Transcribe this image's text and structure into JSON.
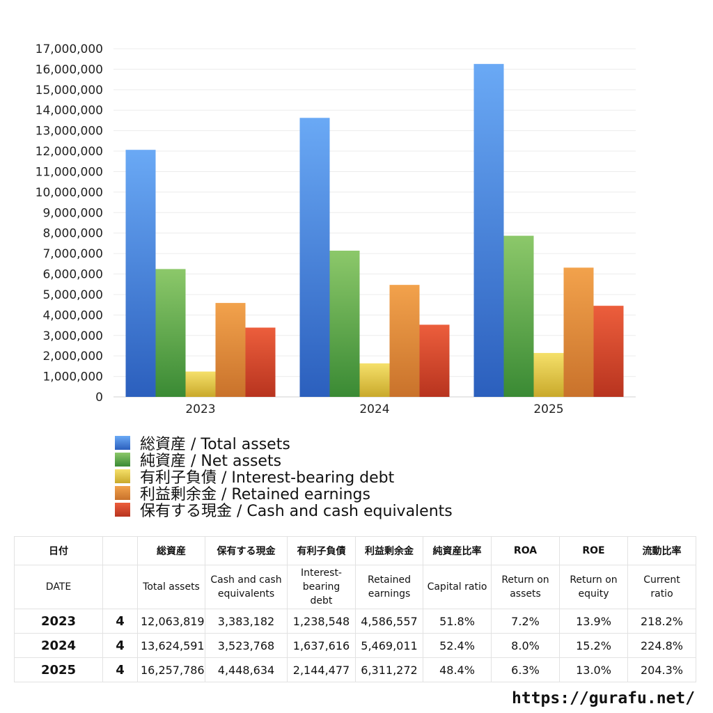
{
  "chart_data": {
    "type": "bar",
    "categories": [
      "2023",
      "2024",
      "2025"
    ],
    "series": [
      {
        "name": "総資産 / Total assets",
        "values": [
          12063819,
          13624591,
          16257786
        ],
        "color_top": "#6aa9f5",
        "color_bottom": "#2b5fbd"
      },
      {
        "name": "純資産 / Net assets",
        "values": [
          6243000,
          7140000,
          7868000
        ],
        "color_top": "#8cc86a",
        "color_bottom": "#3a8a34"
      },
      {
        "name": "有利子負債 / Interest-bearing debt",
        "values": [
          1238548,
          1637616,
          2144477
        ],
        "color_top": "#f5e06a",
        "color_bottom": "#c9a92b"
      },
      {
        "name": "利益剰余金 / Retained earnings",
        "values": [
          4586557,
          5469011,
          6311272
        ],
        "color_top": "#f2a24c",
        "color_bottom": "#c9722b"
      },
      {
        "name": "保有する現金 /  Cash and cash equivalents",
        "values": [
          3383182,
          3523768,
          4448634
        ],
        "color_top": "#ec5e3c",
        "color_bottom": "#b8341f"
      }
    ],
    "yticks": [
      "0",
      "1,000,000",
      "2,000,000",
      "3,000,000",
      "4,000,000",
      "5,000,000",
      "6,000,000",
      "7,000,000",
      "8,000,000",
      "9,000,000",
      "10,000,000",
      "11,000,000",
      "12,000,000",
      "13,000,000",
      "14,000,000",
      "15,000,000",
      "16,000,000",
      "17,000,000"
    ],
    "ylim": [
      0,
      17000000
    ],
    "grid": true,
    "legend": "bottom"
  },
  "table": {
    "header_ja": [
      "日付",
      "",
      "総資産",
      "保有する現金",
      "有利子負債",
      "利益剰余金",
      "純資産比率",
      "ROA",
      "ROE",
      "流動比率"
    ],
    "header_en": [
      "DATE",
      "",
      "Total assets",
      "Cash and cash equivalents",
      "Interest-bearing debt",
      "Retained earnings",
      "Capital ratio",
      "Return on assets",
      "Return on equity",
      "Current ratio"
    ],
    "rows": [
      [
        "2023",
        "4",
        "12,063,819",
        "3,383,182",
        "1,238,548",
        "4,586,557",
        "51.8%",
        "7.2%",
        "13.9%",
        "218.2%"
      ],
      [
        "2024",
        "4",
        "13,624,591",
        "3,523,768",
        "1,637,616",
        "5,469,011",
        "52.4%",
        "8.0%",
        "15.2%",
        "224.8%"
      ],
      [
        "2025",
        "4",
        "16,257,786",
        "4,448,634",
        "2,144,477",
        "6,311,272",
        "48.4%",
        "6.3%",
        "13.0%",
        "204.3%"
      ]
    ]
  },
  "footer": {
    "url": "https://gurafu.net/"
  }
}
